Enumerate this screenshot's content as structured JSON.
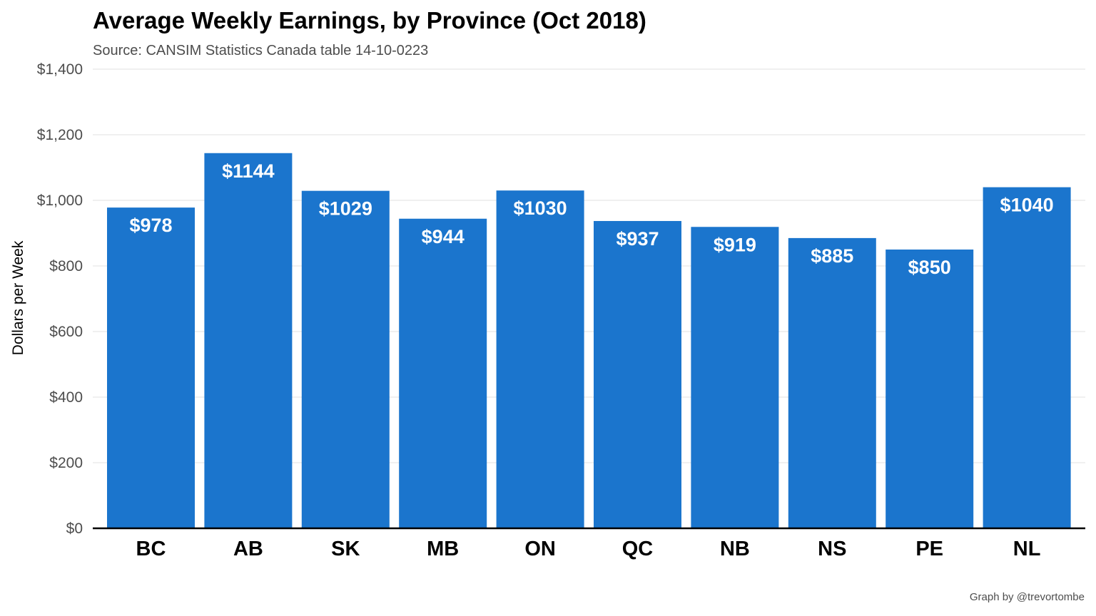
{
  "chart_data": {
    "type": "bar",
    "title": "Average Weekly Earnings, by Province (Oct 2018)",
    "subtitle": "Source: CANSIM Statistics Canada table 14-10-0223",
    "xlabel": "",
    "ylabel": "Dollars per Week",
    "caption": "Graph by @trevortombe",
    "categories": [
      "BC",
      "AB",
      "SK",
      "MB",
      "ON",
      "QC",
      "NB",
      "NS",
      "PE",
      "NL"
    ],
    "values": [
      978,
      1144,
      1029,
      944,
      1030,
      937,
      919,
      885,
      850,
      1040
    ],
    "data_labels": [
      "$978",
      "$1144",
      "$1029",
      "$944",
      "$1030",
      "$937",
      "$919",
      "$885",
      "$850",
      "$1040"
    ],
    "ylim": [
      0,
      1400
    ],
    "yticks": [
      0,
      200,
      400,
      600,
      800,
      1000,
      1200,
      1400
    ],
    "ytick_labels": [
      "$0",
      "$200",
      "$400",
      "$600",
      "$800",
      "$1,000",
      "$1,200",
      "$1,400"
    ],
    "grid": true,
    "legend": "none",
    "bar_color": "#1b75cd"
  }
}
